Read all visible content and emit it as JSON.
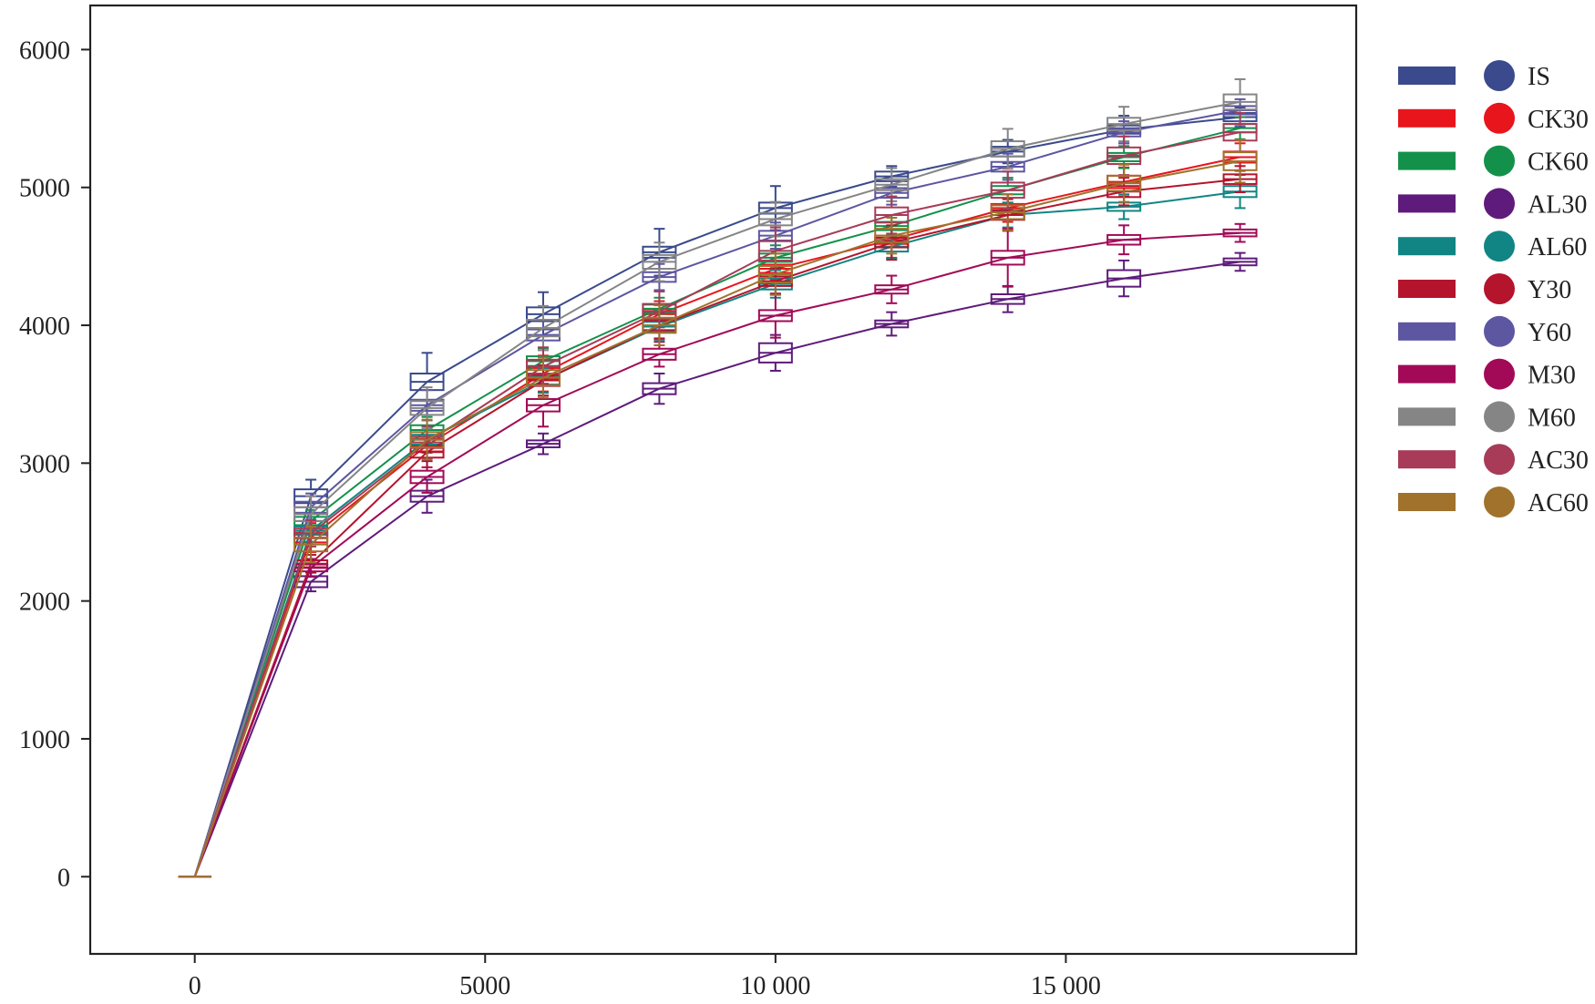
{
  "chart_data": {
    "type": "box-line",
    "title": "",
    "xlabel": "",
    "ylabel": "",
    "xlim": [
      -1800,
      20000
    ],
    "ylim": [
      -560,
      6320
    ],
    "x_ticks": [
      0,
      5000,
      10000,
      15000
    ],
    "x_tick_labels": [
      "0",
      "5000",
      "10 000",
      "15 000"
    ],
    "y_ticks": [
      0,
      1000,
      2000,
      3000,
      4000,
      5000,
      6000
    ],
    "y_tick_labels": [
      "0",
      "1000",
      "2000",
      "3000",
      "4000",
      "5000",
      "6000"
    ],
    "grid": false,
    "legend_position": "right-outside-top",
    "x": [
      0,
      2000,
      4000,
      6000,
      8000,
      10000,
      12000,
      14000,
      16000,
      18000
    ],
    "series": [
      {
        "name": "IS",
        "color": "#3a4a8c",
        "values": [
          0,
          2760,
          3590,
          4080,
          4530,
          4850,
          5080,
          5260,
          5420,
          5510
        ],
        "box_half_height": [
          0,
          50,
          60,
          50,
          40,
          40,
          35,
          35,
          30,
          30
        ],
        "whisker": [
          0,
          70,
          150,
          110,
          130,
          120,
          40,
          50,
          70,
          40
        ]
      },
      {
        "name": "CK30",
        "color": "#e8151c",
        "values": [
          0,
          2460,
          3130,
          3650,
          4080,
          4410,
          4620,
          4850,
          5040,
          5220
        ],
        "box_half_height": [
          0,
          35,
          45,
          40,
          35,
          30,
          30,
          30,
          45,
          40
        ],
        "whisker": [
          0,
          70,
          70,
          90,
          60,
          50,
          100,
          70,
          60,
          60
        ]
      },
      {
        "name": "CK60",
        "color": "#13914a",
        "values": [
          0,
          2580,
          3240,
          3740,
          4120,
          4490,
          4720,
          4980,
          5220,
          5430
        ],
        "box_half_height": [
          0,
          30,
          35,
          35,
          30,
          30,
          30,
          30,
          30,
          30
        ],
        "whisker": [
          0,
          50,
          60,
          60,
          50,
          60,
          50,
          60,
          50,
          50
        ]
      },
      {
        "name": "AL30",
        "color": "#5e1b7b",
        "values": [
          0,
          2140,
          2760,
          3140,
          3540,
          3800,
          4010,
          4190,
          4340,
          4460
        ],
        "box_half_height": [
          0,
          40,
          40,
          25,
          40,
          70,
          25,
          35,
          60,
          25
        ],
        "whisker": [
          0,
          30,
          80,
          50,
          70,
          60,
          60,
          60,
          70,
          40
        ]
      },
      {
        "name": "AL60",
        "color": "#118583",
        "values": [
          0,
          2510,
          3170,
          3600,
          3990,
          4300,
          4570,
          4800,
          4860,
          4970
        ],
        "box_half_height": [
          0,
          30,
          35,
          30,
          35,
          40,
          35,
          30,
          30,
          40
        ],
        "whisker": [
          0,
          50,
          60,
          60,
          60,
          60,
          50,
          60,
          60,
          80
        ]
      },
      {
        "name": "Y30",
        "color": "#b4142c",
        "values": [
          0,
          2270,
          3080,
          3600,
          4000,
          4320,
          4600,
          4800,
          4970,
          5060
        ],
        "box_half_height": [
          0,
          25,
          40,
          40,
          35,
          35,
          35,
          35,
          40,
          35
        ],
        "whisker": [
          0,
          40,
          70,
          70,
          60,
          60,
          90,
          80,
          60,
          60
        ]
      },
      {
        "name": "Y60",
        "color": "#5d56a1",
        "values": [
          0,
          2680,
          3420,
          3930,
          4350,
          4650,
          4960,
          5150,
          5400,
          5560
        ],
        "box_half_height": [
          0,
          40,
          40,
          40,
          35,
          35,
          35,
          35,
          30,
          30
        ],
        "whisker": [
          0,
          60,
          70,
          70,
          60,
          60,
          50,
          60,
          50,
          50
        ]
      },
      {
        "name": "M30",
        "color": "#a20a58",
        "values": [
          0,
          2240,
          2900,
          3420,
          3790,
          4070,
          4260,
          4490,
          4620,
          4670
        ],
        "box_half_height": [
          0,
          25,
          45,
          45,
          40,
          40,
          30,
          50,
          35,
          25
        ],
        "whisker": [
          0,
          40,
          70,
          110,
          50,
          120,
          70,
          160,
          70,
          40
        ]
      },
      {
        "name": "M60",
        "color": "#858585",
        "values": [
          0,
          2630,
          3400,
          3980,
          4460,
          4770,
          5020,
          5280,
          5460,
          5620
        ],
        "box_half_height": [
          0,
          50,
          50,
          60,
          50,
          45,
          40,
          55,
          45,
          55
        ],
        "whisker": [
          0,
          80,
          100,
          100,
          90,
          80,
          80,
          90,
          80,
          110
        ]
      },
      {
        "name": "AC30",
        "color": "#a73b58",
        "values": [
          0,
          2490,
          3150,
          3700,
          4100,
          4540,
          4800,
          4980,
          5230,
          5400
        ],
        "box_half_height": [
          0,
          35,
          40,
          50,
          55,
          70,
          55,
          55,
          60,
          60
        ],
        "whisker": [
          0,
          60,
          80,
          90,
          90,
          100,
          80,
          80,
          80,
          80
        ]
      },
      {
        "name": "AC60",
        "color": "#a0722c",
        "values": [
          0,
          2410,
          3170,
          3620,
          4000,
          4370,
          4650,
          4820,
          5030,
          5190
        ],
        "box_half_height": [
          0,
          50,
          55,
          55,
          55,
          60,
          50,
          50,
          55,
          65
        ],
        "whisker": [
          0,
          80,
          90,
          90,
          90,
          90,
          80,
          80,
          80,
          90
        ]
      }
    ]
  }
}
